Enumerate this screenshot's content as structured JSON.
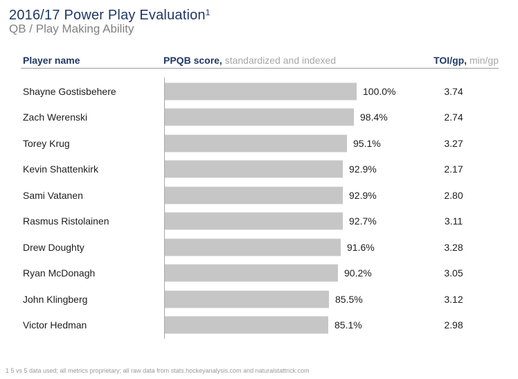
{
  "slide": {
    "title": "2016/17 Power Play Evaluation",
    "title_superscript": "1",
    "subtitle": "QB / Play Making Ability",
    "footnote": "1 5 vs 5 data used; all metrics proprietary; all raw data from stats.hockeyanalysis.com and naturalstattrick.com"
  },
  "table_header": {
    "player_col": "Player name",
    "score_col_bold": "PPQB score,",
    "score_col_rest": " standardized and indexed",
    "toi_col_bold": "TOI/gp,",
    "toi_col_rest": " min/gp"
  },
  "colors": {
    "title_navy": "#1f3864",
    "bar_gray": "#c6c6c6",
    "axis_gray": "#a6a6a6",
    "subtitle_gray": "#808080"
  },
  "chart_data": {
    "type": "bar",
    "orientation": "horizontal",
    "title": "PPQB score, standardized and indexed",
    "categories": [
      "Shayne Gostisbehere",
      "Zach Werenski",
      "Torey Krug",
      "Kevin Shattenkirk",
      "Sami Vatanen",
      "Rasmus Ristolainen",
      "Drew Doughty",
      "Ryan McDonagh",
      "John Klingberg",
      "Victor Hedman"
    ],
    "series": [
      {
        "name": "PPQB score (%, standardized and indexed)",
        "values": [
          100.0,
          98.4,
          95.1,
          92.9,
          92.9,
          92.7,
          91.6,
          90.2,
          85.5,
          85.1
        ]
      },
      {
        "name": "TOI/gp (min/gp)",
        "values": [
          3.74,
          2.74,
          3.27,
          2.17,
          2.8,
          3.11,
          3.28,
          3.05,
          3.12,
          2.98
        ]
      }
    ],
    "xlim": [
      0,
      100
    ],
    "value_labels": true,
    "grid": false,
    "legend": false,
    "rows": [
      {
        "player": "Shayne Gostisbehere",
        "ppqb_score": 100.0,
        "ppqb_label": "100.0%",
        "toi_label": "3.74"
      },
      {
        "player": "Zach Werenski",
        "ppqb_score": 98.4,
        "ppqb_label": "98.4%",
        "toi_label": "2.74"
      },
      {
        "player": "Torey Krug",
        "ppqb_score": 95.1,
        "ppqb_label": "95.1%",
        "toi_label": "3.27"
      },
      {
        "player": "Kevin Shattenkirk",
        "ppqb_score": 92.9,
        "ppqb_label": "92.9%",
        "toi_label": "2.17"
      },
      {
        "player": "Sami Vatanen",
        "ppqb_score": 92.9,
        "ppqb_label": "92.9%",
        "toi_label": "2.80"
      },
      {
        "player": "Rasmus Ristolainen",
        "ppqb_score": 92.7,
        "ppqb_label": "92.7%",
        "toi_label": "3.11"
      },
      {
        "player": "Drew Doughty",
        "ppqb_score": 91.6,
        "ppqb_label": "91.6%",
        "toi_label": "3.28"
      },
      {
        "player": "Ryan McDonagh",
        "ppqb_score": 90.2,
        "ppqb_label": "90.2%",
        "toi_label": "3.05"
      },
      {
        "player": "John Klingberg",
        "ppqb_score": 85.5,
        "ppqb_label": "85.5%",
        "toi_label": "3.12"
      },
      {
        "player": "Victor Hedman",
        "ppqb_score": 85.1,
        "ppqb_label": "85.1%",
        "toi_label": "2.98"
      }
    ]
  }
}
